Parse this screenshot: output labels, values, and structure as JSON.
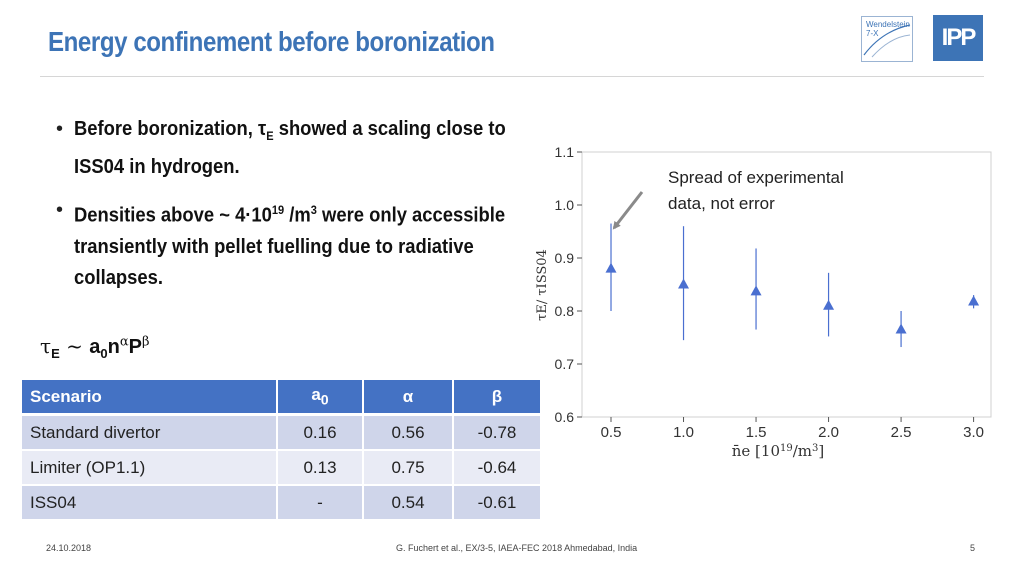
{
  "slide": {
    "title": "Energy confinement before boronization",
    "logo_w7x_line1": "Wendelstein",
    "logo_w7x_line2": "7-X",
    "logo_ipp": "IPP"
  },
  "bullets": [
    {
      "pre": "Before boronization, τ",
      "sub": "E",
      "post": " showed a scaling close to ISS04 in hydrogen."
    },
    {
      "pre": "Densities above ~ 4·10",
      "sup1": "19",
      "mid": " /m",
      "sup2": "3",
      "post": " were only accessible transiently with pellet fuelling due to radiative collapses."
    }
  ],
  "formula": {
    "tau": "τ",
    "tau_sub": "E",
    "tilde": " ~ ",
    "a": "a",
    "a_sub": "0",
    "n": "n",
    "alpha": "α",
    "P": "P",
    "beta": "β"
  },
  "table": {
    "headers": [
      "Scenario",
      "a",
      "α",
      "β"
    ],
    "header_a_sub": "0",
    "rows": [
      [
        "Standard divertor",
        "0.16",
        "0.56",
        "-0.78"
      ],
      [
        "Limiter (OP1.1)",
        "0.13",
        "0.75",
        "-0.64"
      ],
      [
        "ISS04",
        "-",
        "0.54",
        "-0.61"
      ]
    ]
  },
  "chart_data": {
    "type": "scatter",
    "x": [
      0.5,
      1.0,
      1.5,
      2.0,
      2.5,
      3.0
    ],
    "y": [
      0.88,
      0.85,
      0.837,
      0.81,
      0.765,
      0.818
    ],
    "y_low": [
      0.8,
      0.745,
      0.765,
      0.752,
      0.732,
      0.805
    ],
    "y_high": [
      0.965,
      0.96,
      0.918,
      0.872,
      0.8,
      0.83
    ],
    "xlim": [
      0.3,
      3.12
    ],
    "ylim": [
      0.6,
      1.1
    ],
    "xticks": [
      "0.5",
      "1.0",
      "1.5",
      "2.0",
      "2.5",
      "3.0"
    ],
    "yticks": [
      "0.6",
      "0.7",
      "0.8",
      "0.9",
      "1.0",
      "1.1"
    ],
    "xlabel": "n̄e [10^19/m^3]",
    "ylabel": "τE/ τISS04",
    "annotation_line1": "Spread of experimental",
    "annotation_line2": "data, not error",
    "grid": false,
    "marker_color": "#4a6fd0"
  },
  "footer": {
    "date": "24.10.2018",
    "reference": "G. Fuchert et al., EX/3-5, IAEA-FEC 2018 Ahmedabad, India",
    "page": "5"
  }
}
